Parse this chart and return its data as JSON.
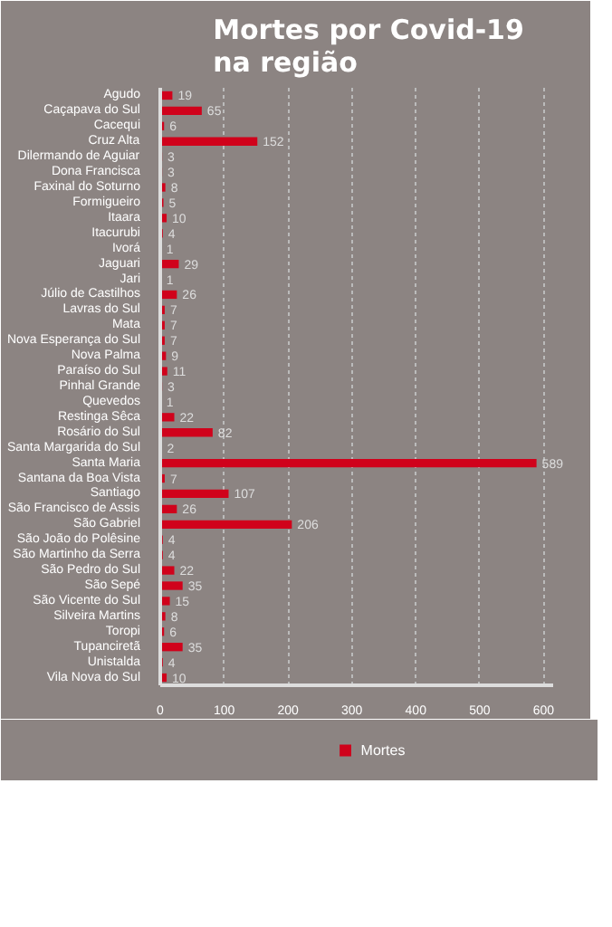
{
  "chart_data": {
    "type": "bar",
    "orientation": "horizontal",
    "title": "Mortes por Covid-19\nna região",
    "categories": [
      "Agudo",
      "Caçapava do Sul",
      "Cacequi",
      "Cruz Alta",
      "Dilermando de Aguiar",
      "Dona Francisca",
      "Faxinal do Soturno",
      "Formigueiro",
      "Itaara",
      "Itacurubi",
      "Ivorá",
      "Jaguari",
      "Jari",
      "Júlio de Castilhos",
      "Lavras do Sul",
      "Mata",
      "Nova Esperança do Sul",
      "Nova Palma",
      "Paraíso do Sul",
      "Pinhal Grande",
      "Quevedos",
      "Restinga Sêca",
      "Rosário do Sul",
      "Santa Margarida do Sul",
      "Santa Maria",
      "Santana da Boa Vista",
      "Santiago",
      "São Francisco de Assis",
      "São Gabriel",
      "São João do Polêsine",
      "São Martinho da Serra",
      "São Pedro do Sul",
      "São Sepé",
      "São Vicente do Sul",
      "Silveira Martins",
      "Toropi",
      "Tupanciretã",
      "Unistalda",
      "Vila Nova do Sul"
    ],
    "series": [
      {
        "name": "Mortes",
        "color": "#d0021b",
        "values": [
          19,
          65,
          6,
          152,
          3,
          3,
          8,
          5,
          10,
          4,
          1,
          29,
          1,
          26,
          7,
          7,
          7,
          9,
          11,
          3,
          1,
          22,
          82,
          2,
          589,
          7,
          107,
          26,
          206,
          4,
          4,
          22,
          35,
          15,
          8,
          6,
          35,
          4,
          10
        ]
      }
    ],
    "xlim": [
      0,
      615
    ],
    "xticks": [
      0,
      100,
      200,
      300,
      400,
      500,
      600
    ],
    "grid": "x",
    "data_labels": true,
    "legend": "bottom"
  }
}
